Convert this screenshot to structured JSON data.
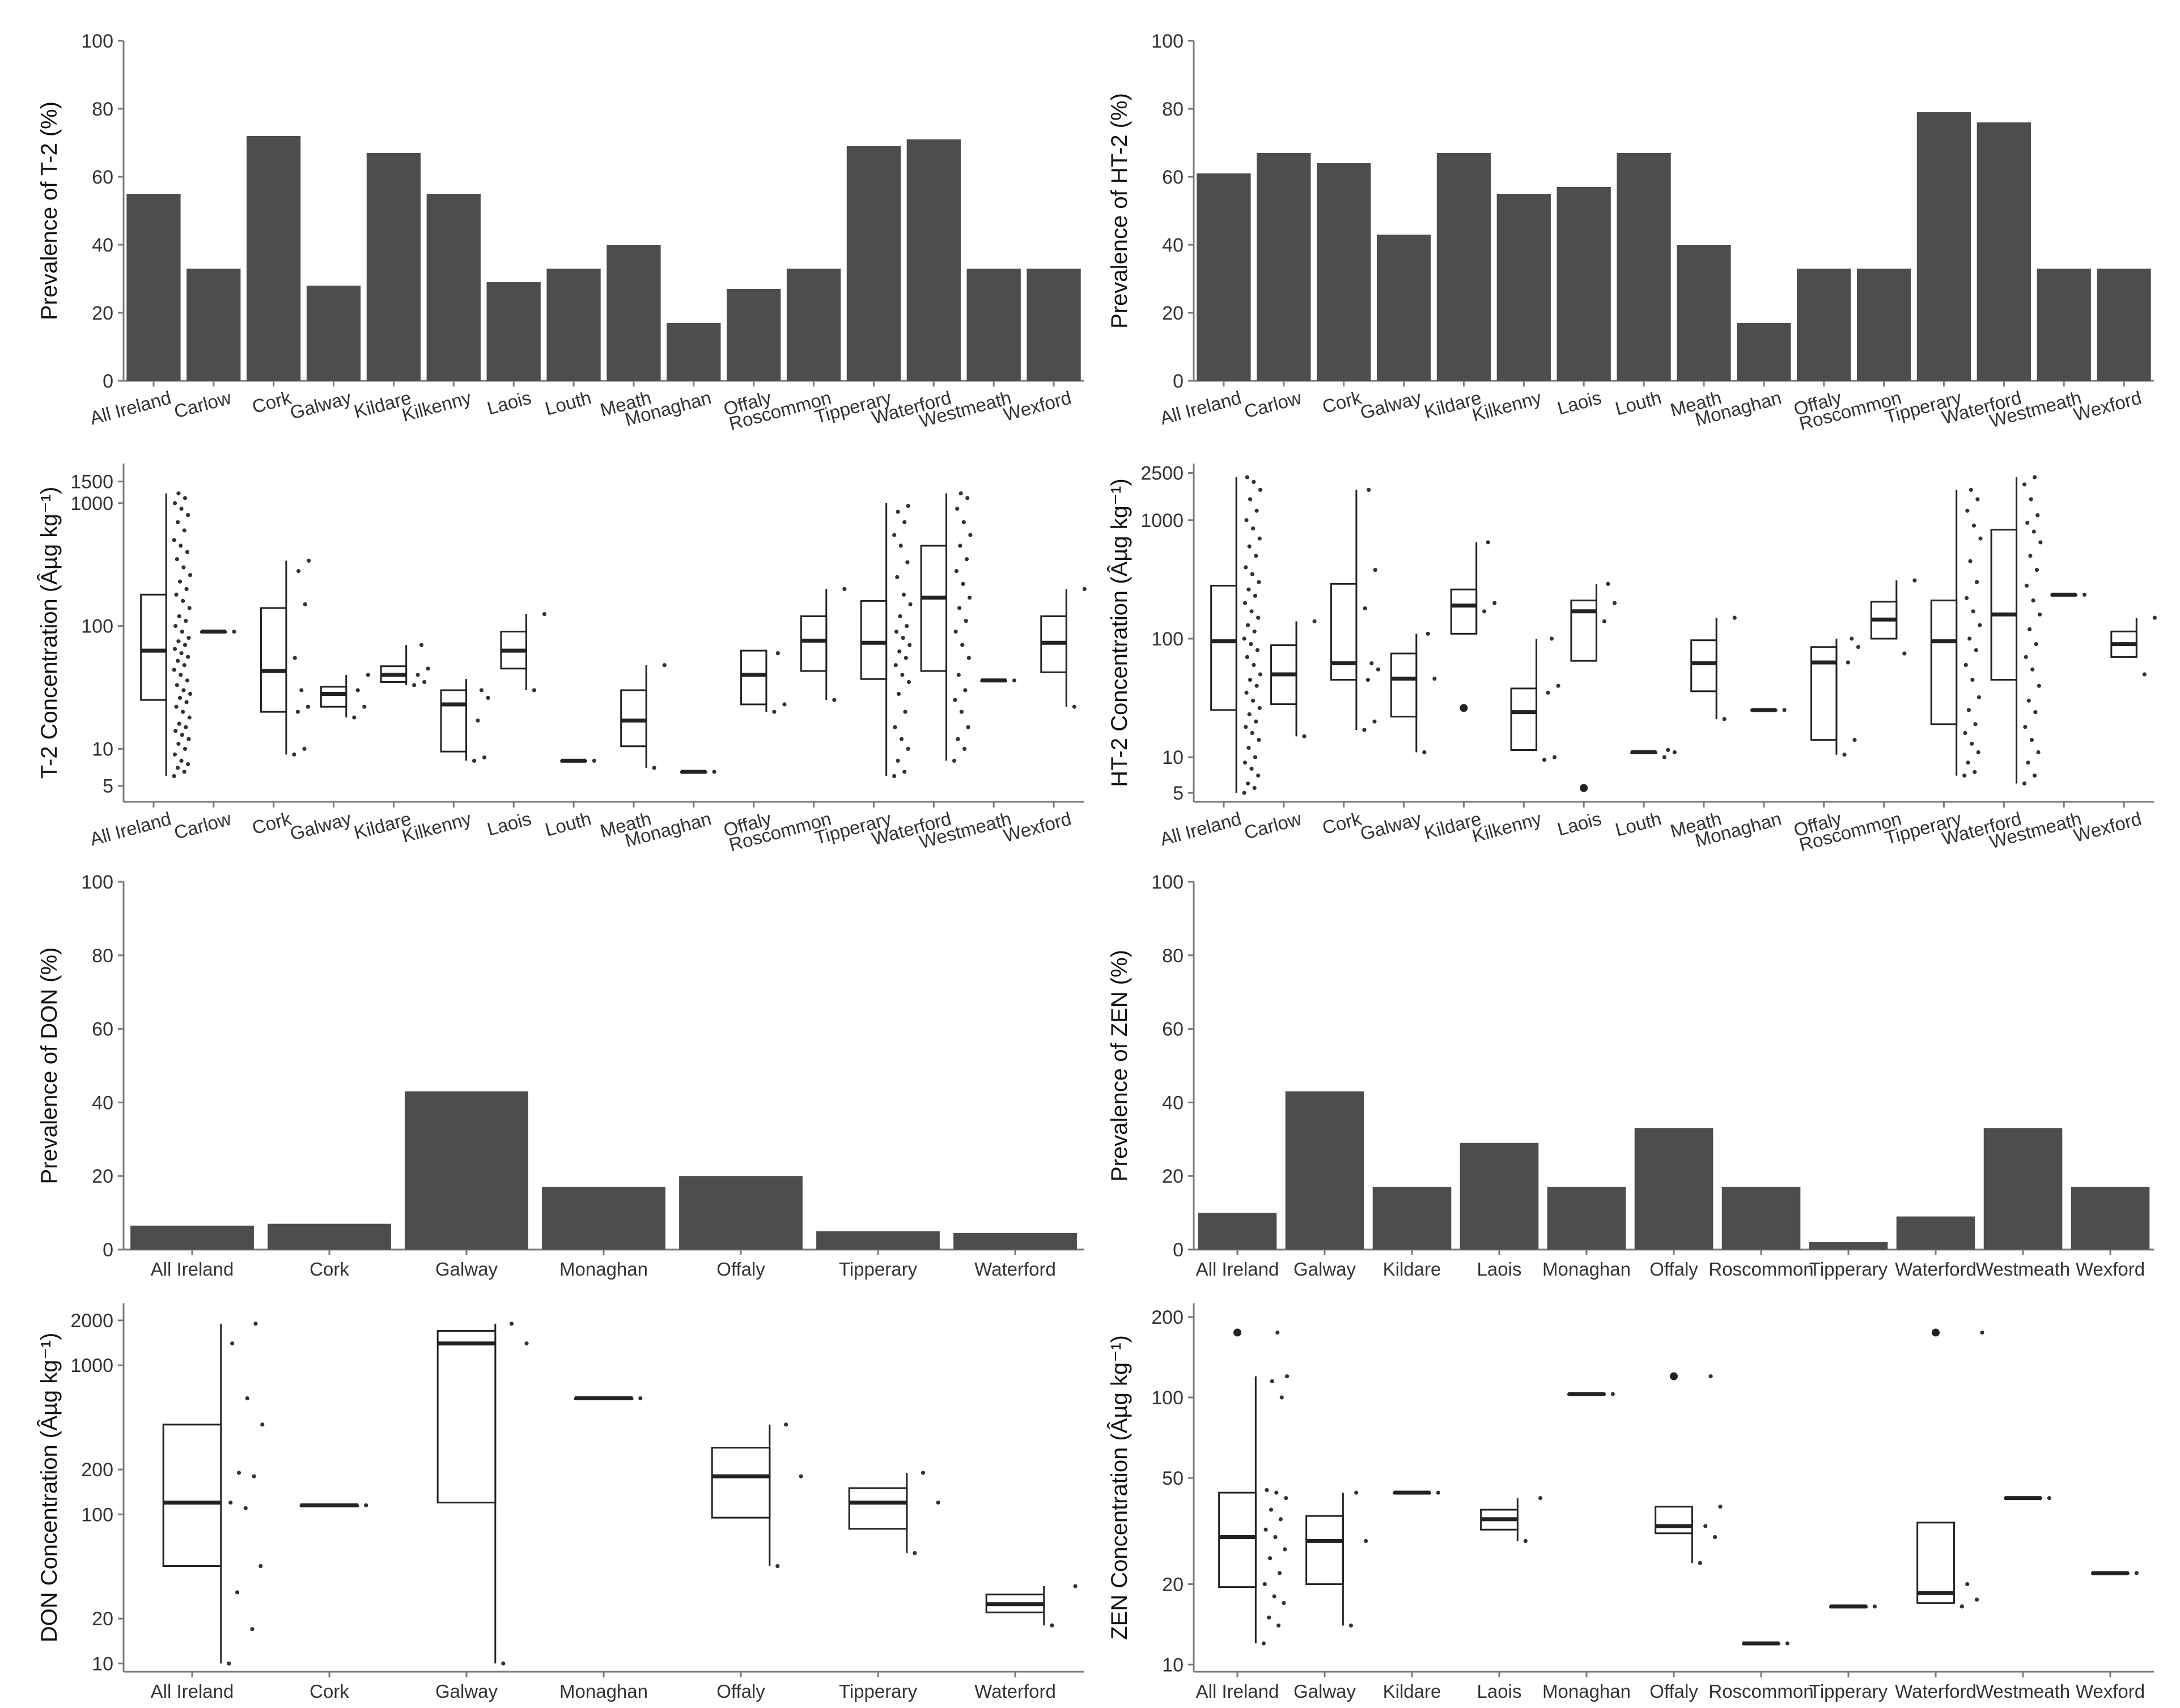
{
  "chart_data": [
    {
      "type": "bar",
      "ylabel": "Prevalence of T-2 (%)",
      "ylim": [
        0,
        100
      ],
      "yticks": [
        "0",
        "20",
        "40",
        "60",
        "80",
        "100"
      ],
      "categories": [
        "All Ireland",
        "Carlow",
        "Cork",
        "Galway",
        "Kildare",
        "Kilkenny",
        "Laois",
        "Louth",
        "Meath",
        "Monaghan",
        "Offaly",
        "Roscommon",
        "Tipperary",
        "Waterford",
        "Westmeath",
        "Wexford"
      ],
      "values": [
        55,
        33,
        72,
        28,
        67,
        55,
        29,
        33,
        40,
        17,
        27,
        33,
        69,
        71,
        33,
        33
      ]
    },
    {
      "type": "bar",
      "ylabel": "Prevalence of HT-2 (%)",
      "ylim": [
        0,
        100
      ],
      "yticks": [
        "0",
        "20",
        "40",
        "60",
        "80",
        "100"
      ],
      "categories": [
        "All Ireland",
        "Carlow",
        "Cork",
        "Galway",
        "Kildare",
        "Kilkenny",
        "Laois",
        "Louth",
        "Meath",
        "Monaghan",
        "Offaly",
        "Roscommon",
        "Tipperary",
        "Waterford",
        "Westmeath",
        "Wexford"
      ],
      "values": [
        61,
        67,
        64,
        43,
        67,
        55,
        57,
        67,
        40,
        17,
        33,
        33,
        79,
        76,
        33,
        33
      ]
    },
    {
      "type": "boxplot",
      "ylabel": "T-2 Concentration (Âµg kg⁻¹)",
      "yscale": "log",
      "ylim": [
        3.7,
        2100
      ],
      "yticks": [
        "5",
        "10",
        "100",
        "1000",
        "1500"
      ],
      "categories": [
        "All Ireland",
        "Carlow",
        "Cork",
        "Galway",
        "Kildare",
        "Kilkenny",
        "Laois",
        "Louth",
        "Meath",
        "Monaghan",
        "Offaly",
        "Roscommon",
        "Tipperary",
        "Waterford",
        "Westmeath",
        "Wexford"
      ],
      "boxes": [
        {
          "q1": 25,
          "median": 63,
          "q3": 180,
          "min": 6,
          "max": 1200,
          "points": [
            6,
            6.5,
            7,
            7.5,
            8,
            9,
            10,
            11,
            12,
            13,
            14,
            15,
            16,
            18,
            20,
            22,
            24,
            26,
            28,
            30,
            33,
            36,
            40,
            44,
            48,
            52,
            56,
            60,
            65,
            70,
            75,
            80,
            90,
            100,
            110,
            120,
            140,
            160,
            180,
            200,
            230,
            260,
            300,
            350,
            400,
            450,
            500,
            600,
            700,
            800,
            900,
            1000,
            1100,
            1200
          ]
        },
        {
          "q1": 90,
          "median": 90,
          "q3": 90,
          "min": 90,
          "max": 90,
          "points": [
            90
          ]
        },
        {
          "q1": 20,
          "median": 43,
          "q3": 140,
          "min": 9,
          "max": 340,
          "points": [
            9,
            10,
            20,
            22,
            30,
            55,
            150,
            280,
            340
          ]
        },
        {
          "q1": 22,
          "median": 28,
          "q3": 32,
          "min": 18,
          "max": 40,
          "points": [
            18,
            22,
            30,
            40
          ]
        },
        {
          "q1": 35,
          "median": 40,
          "q3": 47,
          "min": 33,
          "max": 70,
          "points": [
            33,
            35,
            40,
            45,
            70
          ]
        },
        {
          "q1": 9.5,
          "median": 23,
          "q3": 30,
          "min": 8,
          "max": 37,
          "points": [
            8,
            8.5,
            17,
            26,
            30
          ]
        },
        {
          "q1": 45,
          "median": 63,
          "q3": 90,
          "min": 30,
          "max": 125,
          "points": [
            30,
            125
          ]
        },
        {
          "q1": 8,
          "median": 8,
          "q3": 8,
          "min": 8,
          "max": 8,
          "points": [
            8
          ]
        },
        {
          "q1": 10.5,
          "median": 17,
          "q3": 30,
          "min": 7,
          "max": 48,
          "points": [
            7,
            48
          ]
        },
        {
          "q1": 6.5,
          "median": 6.5,
          "q3": 6.5,
          "min": 6.5,
          "max": 6.5,
          "points": [
            6.5
          ]
        },
        {
          "q1": 23,
          "median": 40,
          "q3": 63,
          "min": 20,
          "max": 63,
          "points": [
            20,
            23,
            60
          ]
        },
        {
          "q1": 43,
          "median": 76,
          "q3": 120,
          "min": 25,
          "max": 200,
          "points": [
            25,
            200
          ]
        },
        {
          "q1": 37,
          "median": 73,
          "q3": 160,
          "min": 6,
          "max": 1000,
          "points": [
            6,
            6.5,
            8,
            10,
            12,
            15,
            20,
            28,
            35,
            40,
            48,
            55,
            62,
            70,
            80,
            90,
            100,
            120,
            150,
            180,
            250,
            330,
            450,
            550,
            700,
            850,
            950
          ]
        },
        {
          "q1": 43,
          "median": 170,
          "q3": 450,
          "min": 8,
          "max": 1200,
          "points": [
            8,
            10,
            12,
            15,
            20,
            25,
            30,
            40,
            55,
            70,
            90,
            110,
            140,
            170,
            220,
            280,
            350,
            450,
            550,
            700,
            900,
            1100,
            1200
          ]
        },
        {
          "q1": 36,
          "median": 36,
          "q3": 36,
          "min": 36,
          "max": 36,
          "points": [
            36
          ]
        },
        {
          "q1": 42,
          "median": 73,
          "q3": 120,
          "min": 22,
          "max": 200,
          "points": [
            22,
            200
          ]
        }
      ]
    },
    {
      "type": "boxplot",
      "ylabel": "HT-2 Concentration (Âµg kg⁻¹)",
      "yscale": "log",
      "ylim": [
        4.2,
        3000
      ],
      "yticks": [
        "5",
        "10",
        "100",
        "1000",
        "2500"
      ],
      "categories": [
        "All Ireland",
        "Carlow",
        "Cork",
        "Galway",
        "Kildare",
        "Kilkenny",
        "Laois",
        "Louth",
        "Meath",
        "Monaghan",
        "Offaly",
        "Roscommon",
        "Tipperary",
        "Waterford",
        "Westmeath",
        "Wexford"
      ],
      "boxes": [
        {
          "q1": 25,
          "median": 95,
          "q3": 280,
          "min": 5,
          "max": 2300,
          "outliers": [],
          "points": [
            5,
            5.5,
            6,
            7,
            8,
            9,
            10,
            12,
            14,
            16,
            18,
            20,
            23,
            26,
            30,
            35,
            40,
            45,
            50,
            60,
            70,
            80,
            90,
            100,
            115,
            130,
            150,
            170,
            200,
            230,
            260,
            300,
            350,
            400,
            500,
            600,
            700,
            850,
            1000,
            1200,
            1500,
            1800,
            2100,
            2300
          ]
        },
        {
          "q1": 28,
          "median": 50,
          "q3": 88,
          "min": 15,
          "max": 140,
          "outliers": [],
          "points": [
            15,
            140
          ]
        },
        {
          "q1": 45,
          "median": 62,
          "q3": 290,
          "min": 17,
          "max": 1800,
          "outliers": [],
          "points": [
            17,
            20,
            45,
            55,
            62,
            180,
            380,
            1800
          ]
        },
        {
          "q1": 22,
          "median": 46,
          "q3": 75,
          "min": 11,
          "max": 110,
          "outliers": [],
          "points": [
            11,
            46,
            110
          ]
        },
        {
          "q1": 110,
          "median": 190,
          "q3": 260,
          "min": 110,
          "max": 650,
          "outliers": [
            26
          ],
          "points": [
            170,
            200,
            650
          ]
        },
        {
          "q1": 11.5,
          "median": 24,
          "q3": 38,
          "min": 11.5,
          "max": 100,
          "outliers": [],
          "points": [
            9.5,
            10,
            35,
            40,
            100
          ]
        },
        {
          "q1": 65,
          "median": 170,
          "q3": 210,
          "min": 65,
          "max": 290,
          "outliers": [
            5.5
          ],
          "points": [
            140,
            200,
            290
          ]
        },
        {
          "q1": 11,
          "median": 11,
          "q3": 11,
          "min": 11,
          "max": 11,
          "outliers": [],
          "points": [
            10,
            11,
            11.5
          ]
        },
        {
          "q1": 36,
          "median": 62,
          "q3": 97,
          "min": 21,
          "max": 150,
          "outliers": [],
          "points": [
            21,
            150
          ]
        },
        {
          "q1": 25,
          "median": 25,
          "q3": 25,
          "min": 25,
          "max": 25,
          "outliers": [],
          "points": [
            25
          ]
        },
        {
          "q1": 14,
          "median": 63,
          "q3": 85,
          "min": 10.5,
          "max": 100,
          "outliers": [],
          "points": [
            10.5,
            14,
            63,
            85,
            100
          ]
        },
        {
          "q1": 100,
          "median": 145,
          "q3": 205,
          "min": 100,
          "max": 310,
          "outliers": [],
          "points": [
            75,
            310
          ]
        },
        {
          "q1": 19,
          "median": 95,
          "q3": 210,
          "min": 7,
          "max": 1800,
          "outliers": [],
          "points": [
            7,
            7.5,
            9,
            11,
            13,
            16,
            19,
            25,
            32,
            45,
            60,
            80,
            100,
            130,
            170,
            220,
            300,
            450,
            700,
            900,
            1200,
            1500,
            1800
          ]
        },
        {
          "q1": 45,
          "median": 160,
          "q3": 830,
          "min": 6,
          "max": 2300,
          "outliers": [],
          "points": [
            6,
            7,
            9,
            11,
            14,
            18,
            24,
            30,
            40,
            55,
            70,
            90,
            120,
            160,
            210,
            280,
            380,
            500,
            650,
            800,
            950,
            1100,
            1500,
            2000,
            2300
          ]
        },
        {
          "q1": 235,
          "median": 235,
          "q3": 235,
          "min": 235,
          "max": 235,
          "outliers": [],
          "points": [
            235
          ]
        },
        {
          "q1": 70,
          "median": 90,
          "q3": 115,
          "min": 70,
          "max": 150,
          "outliers": [],
          "points": [
            50,
            150
          ]
        }
      ]
    },
    {
      "type": "bar",
      "ylabel": "Prevalence of DON (%)",
      "ylim": [
        0,
        100
      ],
      "yticks": [
        "0",
        "20",
        "40",
        "60",
        "80",
        "100"
      ],
      "categories": [
        "All Ireland",
        "Cork",
        "Galway",
        "Monaghan",
        "Offaly",
        "Tipperary",
        "Waterford"
      ],
      "values": [
        6.5,
        7,
        43,
        17,
        20,
        5,
        4.5
      ]
    },
    {
      "type": "bar",
      "ylabel": "Prevalence of ZEN (%)",
      "ylim": [
        0,
        100
      ],
      "yticks": [
        "0",
        "20",
        "40",
        "60",
        "80",
        "100"
      ],
      "categories": [
        "All Ireland",
        "Galway",
        "Kildare",
        "Laois",
        "Monaghan",
        "Offaly",
        "Roscommon",
        "Tipperary",
        "Waterford",
        "Westmeath",
        "Wexford"
      ],
      "values": [
        10,
        43,
        17,
        29,
        17,
        33,
        17,
        2,
        9,
        33,
        17
      ]
    },
    {
      "type": "boxplot",
      "ylabel": "DON Concentration (Âµg kg⁻¹)",
      "yscale": "log",
      "ylim": [
        8.8,
        2600
      ],
      "yticks": [
        "10",
        "20",
        "100",
        "200",
        "1000",
        "2000"
      ],
      "categories": [
        "All Ireland",
        "Cork",
        "Galway",
        "Monaghan",
        "Offaly",
        "Tipperary",
        "Waterford"
      ],
      "boxes": [
        {
          "q1": 45,
          "median": 120,
          "q3": 400,
          "min": 10,
          "max": 1900,
          "outliers": [],
          "points": [
            10,
            17,
            30,
            45,
            110,
            120,
            180,
            190,
            400,
            600,
            1400,
            1900
          ]
        },
        {
          "q1": 115,
          "median": 115,
          "q3": 115,
          "min": 115,
          "max": 115,
          "outliers": [],
          "points": [
            115
          ]
        },
        {
          "q1": 120,
          "median": 1400,
          "q3": 1700,
          "min": 10,
          "max": 1900,
          "outliers": [],
          "points": [
            10,
            1400,
            1900
          ]
        },
        {
          "q1": 600,
          "median": 600,
          "q3": 600,
          "min": 600,
          "max": 600,
          "outliers": [],
          "points": [
            600
          ]
        },
        {
          "q1": 95,
          "median": 180,
          "q3": 280,
          "min": 45,
          "max": 400,
          "outliers": [],
          "points": [
            45,
            180,
            400
          ]
        },
        {
          "q1": 80,
          "median": 120,
          "q3": 150,
          "min": 55,
          "max": 190,
          "outliers": [],
          "points": [
            55,
            120,
            190
          ]
        },
        {
          "q1": 22,
          "median": 25,
          "q3": 29,
          "min": 18,
          "max": 33,
          "outliers": [],
          "points": [
            18,
            33
          ]
        }
      ]
    },
    {
      "type": "boxplot",
      "ylabel": "ZEN Concentration (Âµg kg⁻¹)",
      "yscale": "log",
      "ylim": [
        9.4,
        225
      ],
      "yticks": [
        "10",
        "20",
        "50",
        "100",
        "200"
      ],
      "categories": [
        "All Ireland",
        "Galway",
        "Kildare",
        "Laois",
        "Monaghan",
        "Offaly",
        "Roscommon",
        "Tipperary",
        "Waterford",
        "Westmeath",
        "Wexford"
      ],
      "boxes": [
        {
          "q1": 19.5,
          "median": 30,
          "q3": 44,
          "min": 12,
          "max": 120,
          "outliers": [
            175
          ],
          "points": [
            12,
            14,
            15,
            17,
            18,
            20,
            22,
            25,
            27,
            30,
            32,
            35,
            38,
            42,
            44,
            45,
            100,
            115,
            120,
            175
          ]
        },
        {
          "q1": 20,
          "median": 29,
          "q3": 36,
          "min": 14,
          "max": 44,
          "outliers": [],
          "points": [
            14,
            29,
            44
          ]
        },
        {
          "q1": 44,
          "median": 44,
          "q3": 44,
          "min": 44,
          "max": 44,
          "outliers": [],
          "points": [
            44
          ]
        },
        {
          "q1": 32,
          "median": 35,
          "q3": 38,
          "min": 29,
          "max": 42,
          "outliers": [],
          "points": [
            29,
            42
          ]
        },
        {
          "q1": 103,
          "median": 103,
          "q3": 103,
          "min": 103,
          "max": 103,
          "outliers": [],
          "points": [
            103
          ]
        },
        {
          "q1": 31,
          "median": 33,
          "q3": 39,
          "min": 24,
          "max": 39,
          "outliers": [
            120
          ],
          "points": [
            24,
            30,
            33,
            39,
            120
          ]
        },
        {
          "q1": 12,
          "median": 12,
          "q3": 12,
          "min": 12,
          "max": 12,
          "outliers": [],
          "points": [
            12
          ]
        },
        {
          "q1": 16.5,
          "median": 16.5,
          "q3": 16.5,
          "min": 16.5,
          "max": 16.5,
          "outliers": [],
          "points": [
            16.5
          ]
        },
        {
          "q1": 17,
          "median": 18.5,
          "q3": 34,
          "min": 17,
          "max": 34,
          "outliers": [
            175
          ],
          "points": [
            16.5,
            17.5,
            20,
            175
          ]
        },
        {
          "q1": 42,
          "median": 42,
          "q3": 42,
          "min": 42,
          "max": 42,
          "outliers": [],
          "points": [
            42
          ]
        },
        {
          "q1": 22,
          "median": 22,
          "q3": 22,
          "min": 22,
          "max": 22,
          "outliers": [],
          "points": [
            22
          ]
        }
      ]
    }
  ]
}
